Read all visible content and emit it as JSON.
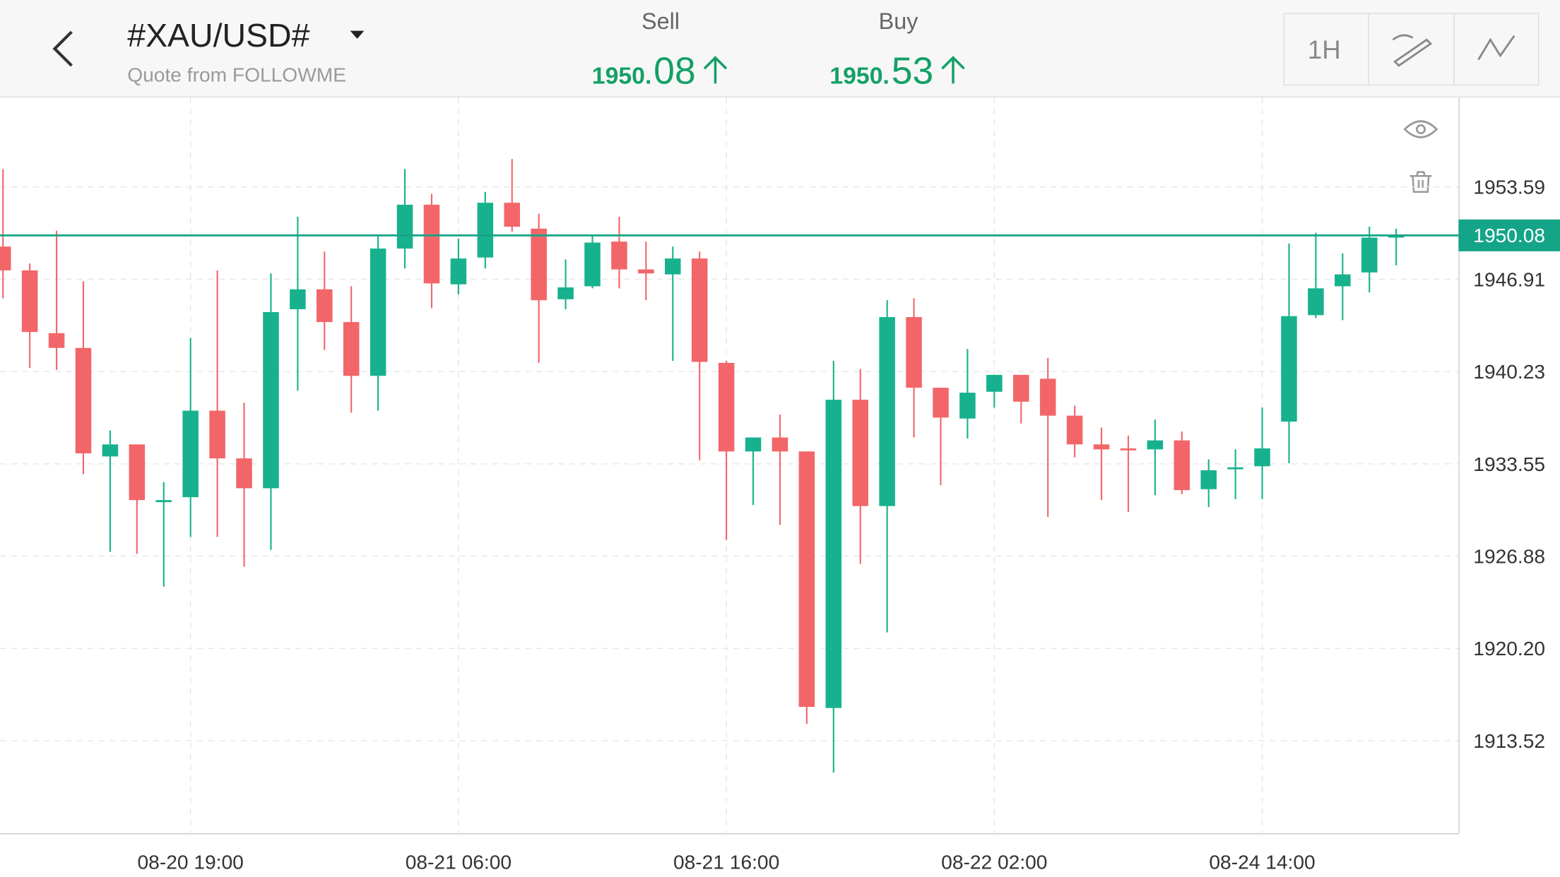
{
  "header": {
    "title": "#XAU/USD#",
    "subtitle": "Quote from FOLLOWME",
    "sell": {
      "label": "Sell",
      "integer": "1950.",
      "decimals": "08"
    },
    "buy": {
      "label": "Buy",
      "integer": "1950.",
      "decimals": "53"
    },
    "timeframe": "1H"
  },
  "chart_data": {
    "type": "candlestick",
    "up_color": "#17b28d",
    "down_color": "#f26669",
    "grid": true,
    "categories": [
      null,
      null,
      null,
      null,
      null,
      null,
      null,
      "08-20 19:00",
      null,
      null,
      null,
      null,
      null,
      null,
      null,
      null,
      null,
      "08-21 06:00",
      null,
      null,
      null,
      null,
      null,
      null,
      null,
      null,
      null,
      "08-21 16:00",
      null,
      null,
      null,
      null,
      null,
      null,
      null,
      null,
      null,
      "08-22 02:00",
      null,
      null,
      null,
      null,
      null,
      null,
      null,
      null,
      null,
      "08-24 14:00",
      null,
      null,
      null,
      null,
      null
    ],
    "series": [
      {
        "name": "open",
        "values": [
          1949.27,
          1947.55,
          1943.01,
          1941.94,
          1934.09,
          1934.96,
          1930.78,
          1931.14,
          1937.4,
          1933.95,
          1931.79,
          1944.74,
          1946.18,
          1943.81,
          1939.92,
          1949.13,
          1952.3,
          1946.54,
          1948.48,
          1952.44,
          1950.57,
          1945.46,
          1946.4,
          1949.63,
          1947.62,
          1947.26,
          1948.41,
          1940.86,
          1934.45,
          1935.46,
          1934.45,
          1915.89,
          1938.19,
          1930.5,
          1944.17,
          1939.06,
          1936.83,
          1938.77,
          1939.99,
          1939.71,
          1937.04,
          1934.96,
          1934.67,
          1934.6,
          1935.25,
          1931.72,
          1933.16,
          1933.38,
          1936.61,
          1944.31,
          1946.4,
          1947.4,
          1949.92
        ]
      },
      {
        "name": "high",
        "values": [
          1954.88,
          1948.05,
          1950.42,
          1946.76,
          1935.96,
          1934.96,
          1932.22,
          1942.66,
          1947.55,
          1937.98,
          1947.33,
          1951.43,
          1948.91,
          1946.4,
          1950.06,
          1954.88,
          1953.09,
          1949.85,
          1953.23,
          1955.6,
          1951.65,
          1948.34,
          1950.14,
          1951.43,
          1949.63,
          1949.27,
          1948.91,
          1941.0,
          1935.46,
          1937.12,
          1934.45,
          1941.0,
          1940.42,
          1945.39,
          1945.53,
          1939.06,
          1941.86,
          1939.99,
          1939.99,
          1941.22,
          1937.76,
          1936.18,
          1935.6,
          1936.76,
          1935.89,
          1933.88,
          1934.6,
          1937.62,
          1949.49,
          1950.28,
          1948.77,
          1950.71,
          1950.57
        ]
      },
      {
        "name": "low",
        "values": [
          1945.53,
          1940.5,
          1940.35,
          1932.8,
          1927.19,
          1927.04,
          1924.67,
          1928.27,
          1928.27,
          1926.11,
          1927.33,
          1938.84,
          1941.79,
          1937.26,
          1937.4,
          1947.69,
          1944.81,
          1945.82,
          1947.69,
          1950.35,
          1940.86,
          1944.74,
          1946.25,
          1946.25,
          1945.39,
          1941.0,
          1933.81,
          1928.05,
          1930.57,
          1929.13,
          1914.74,
          1911.22,
          1926.32,
          1921.36,
          1935.46,
          1932.01,
          1935.39,
          1937.62,
          1936.47,
          1929.71,
          1934.02,
          1930.93,
          1930.07,
          1931.29,
          1931.36,
          1930.43,
          1931.0,
          1931.0,
          1933.59,
          1944.09,
          1943.95,
          1945.96,
          1947.91
        ]
      },
      {
        "name": "close",
        "values": [
          1947.55,
          1943.09,
          1941.94,
          1934.31,
          1934.96,
          1930.93,
          1930.93,
          1937.4,
          1933.95,
          1931.79,
          1944.53,
          1946.18,
          1943.81,
          1939.92,
          1949.13,
          1952.3,
          1946.61,
          1948.41,
          1952.44,
          1950.71,
          1945.39,
          1946.32,
          1949.56,
          1947.62,
          1947.33,
          1948.41,
          1940.93,
          1934.45,
          1935.46,
          1934.45,
          1915.97,
          1938.19,
          1930.5,
          1944.17,
          1939.06,
          1936.9,
          1938.7,
          1939.99,
          1938.05,
          1937.04,
          1934.96,
          1934.6,
          1934.53,
          1935.25,
          1931.65,
          1933.09,
          1933.3,
          1934.67,
          1944.24,
          1946.25,
          1947.26,
          1949.92,
          1950.08
        ]
      }
    ],
    "current_price": 1950.08,
    "current_color": "#14a487",
    "ylim": [
      1906.83,
      1960.06
    ],
    "yticks": [
      1913.52,
      {
        "value": 1920.2,
        "label": "1920.20"
      },
      1926.88,
      1933.55,
      1940.23,
      1946.91,
      1953.59
    ]
  }
}
